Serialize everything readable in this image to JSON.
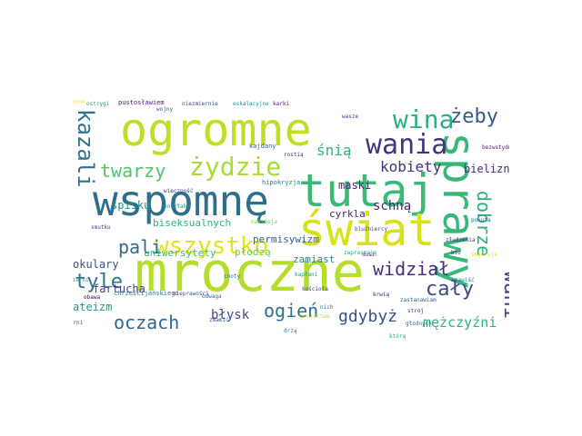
{
  "word_cloud": {
    "words": [
      {
        "text": "wspomnę",
        "color": "#2f6f8e"
      },
      {
        "text": "tutaj",
        "color": "#3aba76"
      },
      {
        "text": "mroczne",
        "color": "#b5de2b"
      },
      {
        "text": "ogromne",
        "color": "#bddf26"
      },
      {
        "text": "świat",
        "color": "#d8e219"
      },
      {
        "text": "sprawy",
        "color": "#37b878"
      },
      {
        "text": "wania",
        "color": "#46327e"
      },
      {
        "text": "wina",
        "color": "#2ab07f"
      },
      {
        "text": "żydzie",
        "color": "#a8db34"
      },
      {
        "text": "wszystko",
        "color": "#e3e418"
      },
      {
        "text": "kazali",
        "color": "#2e6e8e"
      },
      {
        "text": "twarzy",
        "color": "#52c569"
      },
      {
        "text": "żeby",
        "color": "#38588c"
      },
      {
        "text": "widział",
        "color": "#472f7d"
      },
      {
        "text": "cały",
        "color": "#3e4989"
      },
      {
        "text": "dobrze",
        "color": "#2ab07f"
      },
      {
        "text": "wani",
        "color": "#414487"
      },
      {
        "text": "pali",
        "color": "#306a8e"
      },
      {
        "text": "tyle",
        "color": "#2c738e"
      },
      {
        "text": "oczach",
        "color": "#31678e"
      },
      {
        "text": "ogień",
        "color": "#2d718e"
      },
      {
        "text": "gdybyż",
        "color": "#3b518b"
      },
      {
        "text": "kobiety",
        "color": "#46307e"
      },
      {
        "text": "mężczyźni",
        "color": "#2fb47c"
      },
      {
        "text": "śnią",
        "color": "#2db27d"
      },
      {
        "text": "schną",
        "color": "#482173"
      },
      {
        "text": "błysk",
        "color": "#3e4a89"
      },
      {
        "text": "fartucha",
        "color": "#423f85"
      },
      {
        "text": "spisku",
        "color": "#21918c"
      },
      {
        "text": "okulary",
        "color": "#3c508b"
      },
      {
        "text": "ateizm",
        "color": "#1e9b8a"
      },
      {
        "text": "maski",
        "color": "#482475"
      },
      {
        "text": "bielizn",
        "color": "#482878"
      },
      {
        "text": "cyrkla",
        "color": "#482475"
      },
      {
        "text": "zamiast",
        "color": "#26828e"
      },
      {
        "text": "płodzą",
        "color": "#6ccd5a"
      },
      {
        "text": "uniwersytety",
        "color": "#3bbb75"
      },
      {
        "text": "biseksualnych",
        "color": "#2eb37c"
      },
      {
        "text": "permisywizm",
        "color": "#34608d"
      },
      {
        "text": "ostrygi",
        "color": "#1fa188"
      },
      {
        "text": "pustosławiem",
        "color": "#482374"
      },
      {
        "text": "niezmiernie",
        "color": "#3f4788"
      },
      {
        "text": "eskalacyjne",
        "color": "#23898e"
      },
      {
        "text": "karki",
        "color": "#482576"
      },
      {
        "text": "ukrytego",
        "color": "#fde725"
      },
      {
        "text": "hipokryzja",
        "color": "#27808e"
      },
      {
        "text": "kajdany",
        "color": "#31668e"
      },
      {
        "text": "rostią",
        "color": "#46327e"
      },
      {
        "text": "wasze",
        "color": "#443a83"
      },
      {
        "text": "chrześcijańskiego",
        "color": "#2a788e"
      },
      {
        "text": "zmamić",
        "color": "#3a538b"
      },
      {
        "text": "dusi",
        "color": "#482979"
      },
      {
        "text": "krwią",
        "color": "#482173"
      },
      {
        "text": "stroj",
        "color": "#46337f"
      },
      {
        "text": "kto",
        "color": "#481f70"
      },
      {
        "text": "głodnych",
        "color": "#2c728e"
      },
      {
        "text": "którą",
        "color": "#20a386"
      },
      {
        "text": "nich",
        "color": "#2c728e"
      },
      {
        "text": "proroctwa",
        "color": "#b8de29"
      },
      {
        "text": "zapraszają",
        "color": "#22a785"
      },
      {
        "text": "zastanawiam",
        "color": "#355f8d"
      },
      {
        "text": "poszłaby",
        "color": "#20928c"
      },
      {
        "text": "smutku",
        "color": "#414287"
      },
      {
        "text": "wojny",
        "color": "#3a548c"
      },
      {
        "text": "sugeruje",
        "color": "#dde318"
      },
      {
        "text": "nieprawości",
        "color": "#3b528b"
      },
      {
        "text": "cnoty",
        "color": "#2d708e"
      },
      {
        "text": "kapłani",
        "color": "#1f968b"
      },
      {
        "text": "kościoła",
        "color": "#3e4c8a"
      },
      {
        "text": "nadzieja",
        "color": "#6ece58"
      },
      {
        "text": "złudzenia",
        "color": "#482979"
      },
      {
        "text": "bluźniercy",
        "color": "#443983"
      },
      {
        "text": "pokuta",
        "color": "#2f6c8e"
      },
      {
        "text": "wierni",
        "color": "#1f9f88"
      },
      {
        "text": "mizerni",
        "color": "#34618d"
      },
      {
        "text": "obawa",
        "color": "#440154"
      },
      {
        "text": "drżą",
        "color": "#24868e"
      },
      {
        "text": "bezwstydnie",
        "color": "#481a6c"
      },
      {
        "text": "zawiść",
        "color": "#2a768e"
      },
      {
        "text": "wieczność",
        "color": "#46307e"
      },
      {
        "text": "odwaga",
        "color": "#2c738e"
      }
    ]
  }
}
